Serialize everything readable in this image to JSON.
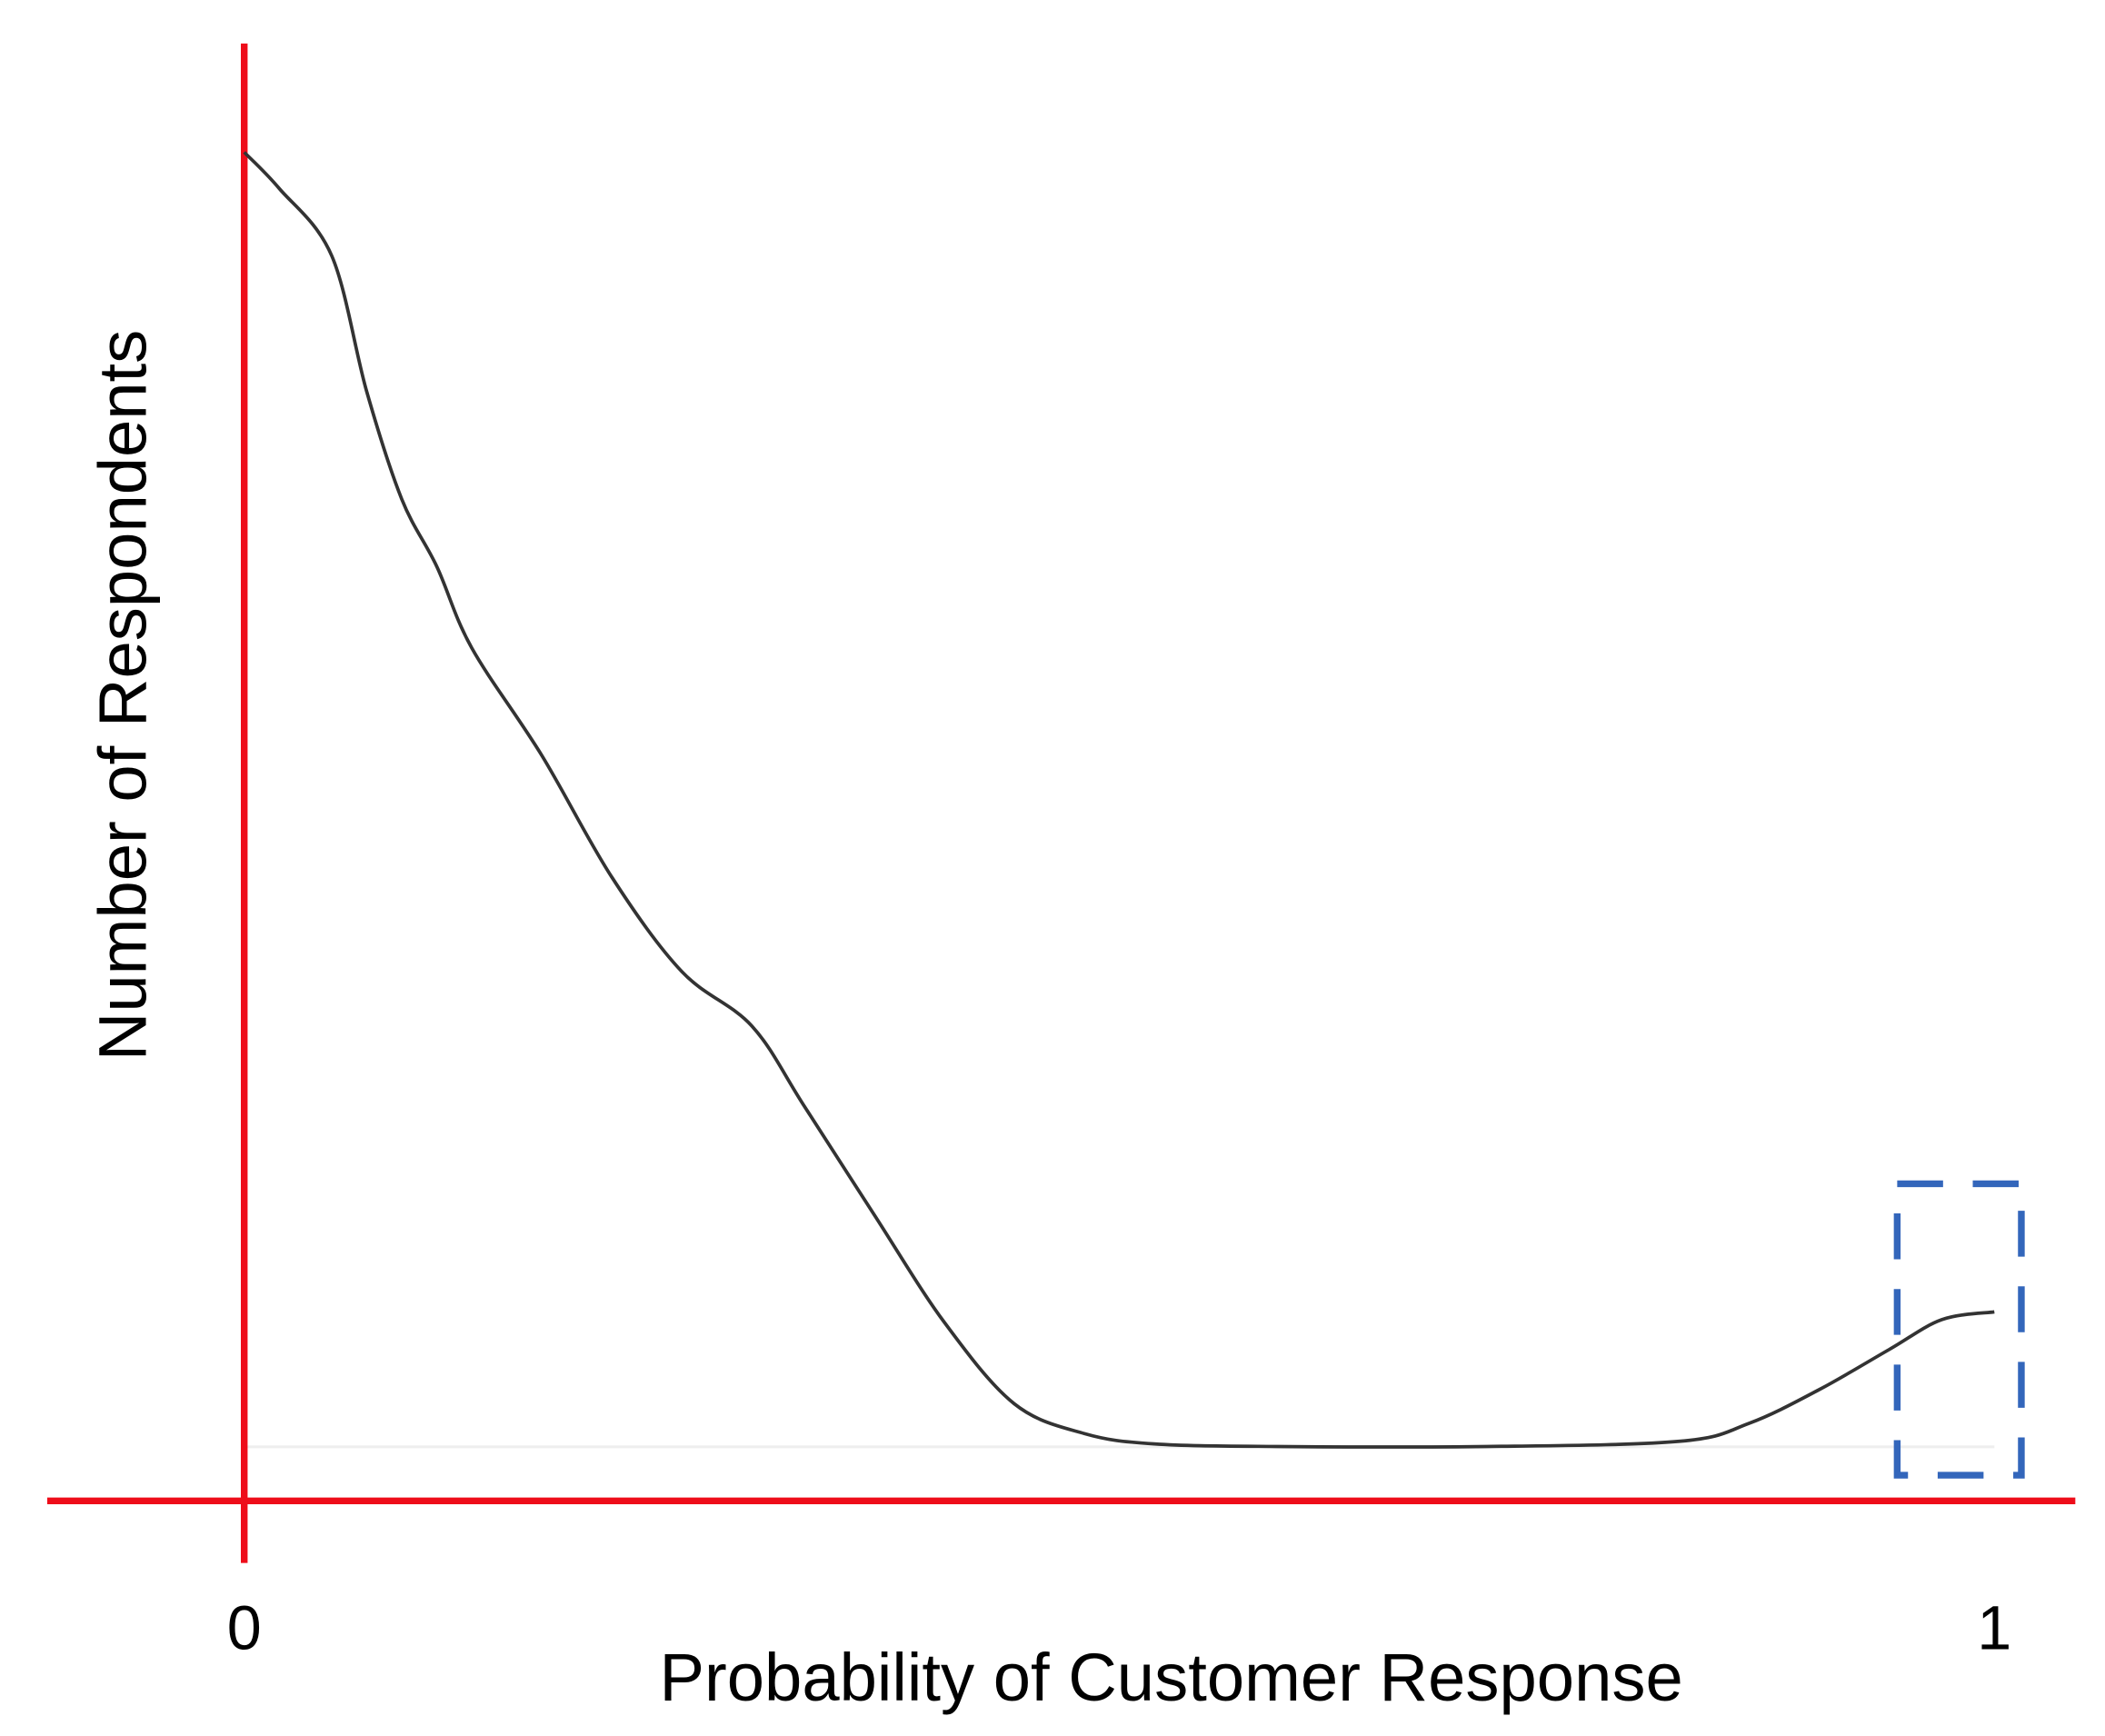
{
  "chart_data": {
    "type": "line",
    "x_label": "Probability of Customer Response",
    "y_label": "Number of Respondents",
    "xlim": [
      0,
      1
    ],
    "xticks": [
      0,
      1
    ],
    "ylim": [
      -0.42,
      10.84
    ],
    "series": [
      {
        "color": "#333333",
        "x": [
          0,
          0.02,
          0.05,
          0.07,
          0.09,
          0.11,
          0.13,
          0.17,
          0.21,
          0.25,
          0.29,
          0.32,
          0.36,
          0.4,
          0.44,
          0.48,
          0.52,
          0.59,
          0.71,
          0.82,
          0.86,
          0.9,
          0.94,
          0.97,
          1
        ],
        "values": [
          10,
          9.72,
          9.2,
          8.15,
          7.32,
          6.8,
          6.17,
          5.34,
          4.4,
          3.67,
          3.25,
          2.63,
          1.79,
          0.96,
          0.33,
          0.1,
          0.02,
          0,
          0,
          0.04,
          0.18,
          0.44,
          0.75,
          0.98,
          1.04
        ]
      }
    ]
  }
}
